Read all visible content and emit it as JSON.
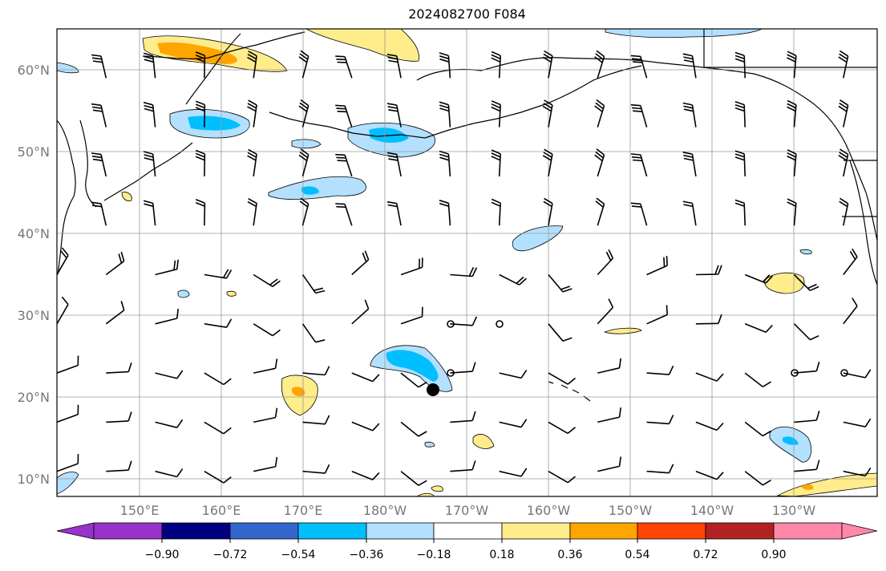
{
  "title": "2024082700 F084",
  "lat_labels": [
    "60°N",
    "50°N",
    "40°N",
    "30°N",
    "20°N",
    "10°N"
  ],
  "lon_labels": [
    "150°E",
    "160°E",
    "170°E",
    "180°W",
    "170°W",
    "160°W",
    "150°W",
    "140°W",
    "130°W"
  ],
  "colorbar": {
    "ticks": [
      "−0.90",
      "−0.72",
      "−0.54",
      "−0.36",
      "−0.18",
      "0.18",
      "0.36",
      "0.54",
      "0.72",
      "0.90"
    ],
    "colors": [
      "#9933cc",
      "#000080",
      "#3366cc",
      "#00bfff",
      "#b3e0ff",
      "#ffffff",
      "#ffec8b",
      "#ffa500",
      "#ff4500",
      "#b22222",
      "#ff88aa"
    ]
  },
  "fill_colors": {
    "neg_light": "#b3e0ff",
    "neg_mid": "#00bfff",
    "pos_light": "#ffec8b",
    "pos_mid": "#ffa500"
  },
  "marker": {
    "name": "storm-center",
    "lat": 21,
    "lon": -174
  }
}
